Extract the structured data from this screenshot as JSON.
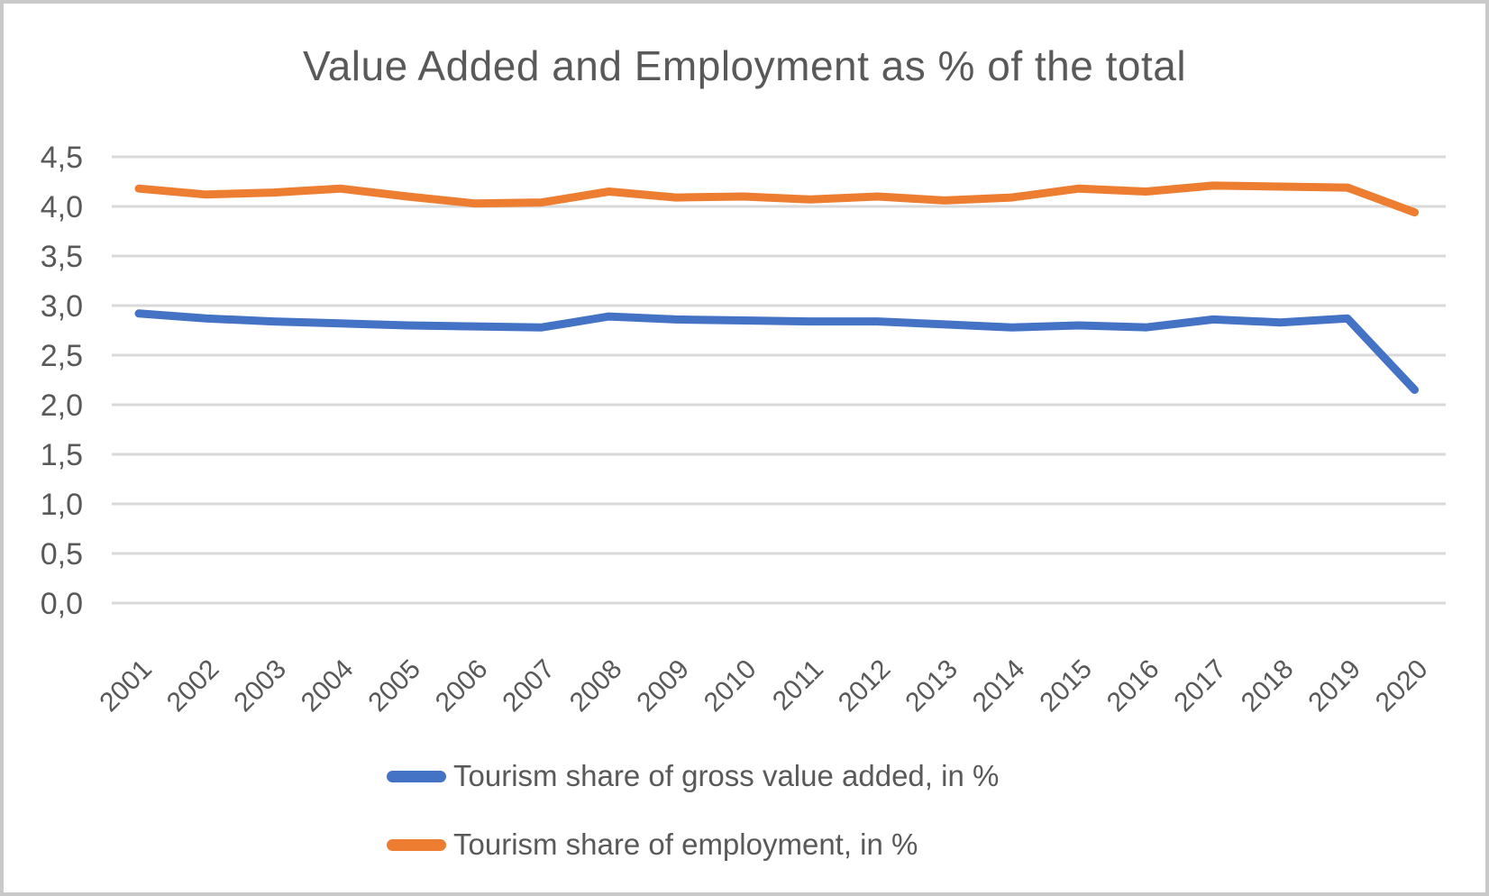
{
  "chart_data": {
    "type": "line",
    "title": "Value Added and Employment as % of the total",
    "categories": [
      "2001",
      "2002",
      "2003",
      "2004",
      "2005",
      "2006",
      "2007",
      "2008",
      "2009",
      "2010",
      "2011",
      "2012",
      "2013",
      "2014",
      "2015",
      "2016",
      "2017",
      "2018",
      "2019",
      "2020"
    ],
    "series": [
      {
        "name": "Tourism share of gross value added, in %",
        "color": "#4472C4",
        "values": [
          2.92,
          2.87,
          2.84,
          2.82,
          2.8,
          2.79,
          2.78,
          2.89,
          2.86,
          2.85,
          2.84,
          2.84,
          2.81,
          2.78,
          2.8,
          2.78,
          2.86,
          2.83,
          2.87,
          2.15
        ]
      },
      {
        "name": "Tourism share of employment, in %",
        "color": "#ED7D31",
        "values": [
          4.18,
          4.12,
          4.14,
          4.18,
          4.1,
          4.03,
          4.04,
          4.15,
          4.09,
          4.1,
          4.07,
          4.1,
          4.06,
          4.09,
          4.18,
          4.15,
          4.21,
          4.2,
          4.19,
          3.94
        ]
      }
    ],
    "xlabel": "",
    "ylabel": "",
    "ylim": [
      0,
      4.5
    ],
    "ytick_step": 0.5,
    "ytick_labels": [
      "0,0",
      "0,5",
      "1,0",
      "1,5",
      "2,0",
      "2,5",
      "3,0",
      "3,5",
      "4,0",
      "4,5"
    ],
    "grid": true,
    "legend_position": "bottom",
    "styles": {
      "text_color": "#595959",
      "gridline_color": "#D9D9D9",
      "background": "#FFFFFF",
      "border_color": "#C9C9C9"
    }
  }
}
